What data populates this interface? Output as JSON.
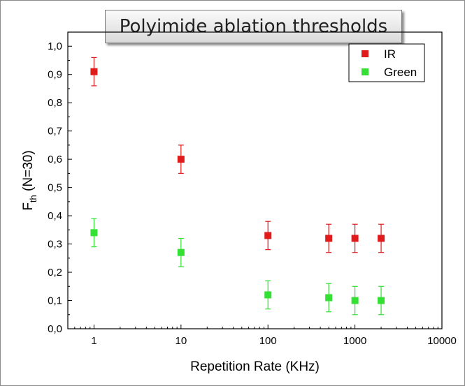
{
  "title": "Polyimide ablation thresholds",
  "chart_data": {
    "type": "scatter",
    "title": "Polyimide ablation thresholds",
    "xlabel": "Repetition Rate (KHz)",
    "ylabel_main": "F",
    "ylabel_sub": "th",
    "ylabel_suffix": " (N=30)",
    "xscale": "log",
    "xlim": [
      0.5,
      10000
    ],
    "ylim": [
      0,
      1.05
    ],
    "x_ticks": [
      1,
      10,
      100,
      1000,
      10000
    ],
    "x_tick_labels": [
      "1",
      "10",
      "100",
      "1000",
      "10000"
    ],
    "y_ticks": [
      0,
      0.1,
      0.2,
      0.3,
      0.4,
      0.5,
      0.6,
      0.7,
      0.8,
      0.9,
      1.0
    ],
    "y_tick_labels": [
      "0,0",
      "0,1",
      "0,2",
      "0,3",
      "0,4",
      "0,5",
      "0,6",
      "0,7",
      "0,8",
      "0,9",
      "1,0"
    ],
    "legend_position": "top-right",
    "grid": false,
    "series": [
      {
        "name": "IR",
        "color": "#e01b1b",
        "x": [
          1,
          10,
          100,
          500,
          1000,
          2000
        ],
        "y": [
          0.91,
          0.6,
          0.33,
          0.32,
          0.32,
          0.32
        ],
        "err": [
          0.05,
          0.05,
          0.05,
          0.05,
          0.05,
          0.05
        ]
      },
      {
        "name": "Green",
        "color": "#33e033",
        "x": [
          1,
          10,
          100,
          500,
          1000,
          2000
        ],
        "y": [
          0.34,
          0.27,
          0.12,
          0.11,
          0.1,
          0.1
        ],
        "err": [
          0.05,
          0.05,
          0.05,
          0.05,
          0.05,
          0.05
        ]
      }
    ]
  }
}
